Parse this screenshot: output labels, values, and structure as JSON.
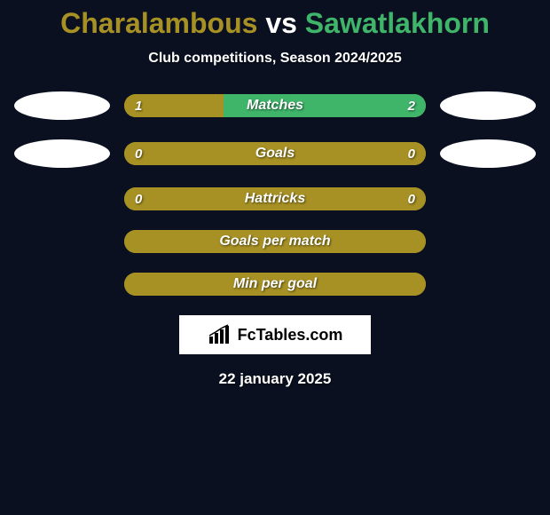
{
  "title": {
    "player1": "Charalambous",
    "vs": " vs ",
    "player2": "Sawatlakhorn",
    "player1_color": "#a79124",
    "player2_color": "#3fb56a"
  },
  "subtitle": "Club competitions, Season 2024/2025",
  "colors": {
    "background": "#0a1020",
    "bar_olive": "#a79124",
    "bar_green": "#3fb56a",
    "text_white": "#ffffff"
  },
  "rows": [
    {
      "label": "Matches",
      "left_value": "1",
      "right_value": "2",
      "left_pct": 33,
      "right_pct": 67,
      "left_color": "#a79124",
      "right_color": "#3fb56a",
      "show_ellipses": true
    },
    {
      "label": "Goals",
      "left_value": "0",
      "right_value": "0",
      "left_pct": 50,
      "right_pct": 50,
      "left_color": "#a79124",
      "right_color": "#a79124",
      "show_ellipses": true
    },
    {
      "label": "Hattricks",
      "left_value": "0",
      "right_value": "0",
      "left_pct": 50,
      "right_pct": 50,
      "left_color": "#a79124",
      "right_color": "#a79124",
      "show_ellipses": false
    },
    {
      "label": "Goals per match",
      "left_value": "",
      "right_value": "",
      "left_pct": 100,
      "right_pct": 0,
      "left_color": "#a79124",
      "right_color": "#a79124",
      "show_ellipses": false
    },
    {
      "label": "Min per goal",
      "left_value": "",
      "right_value": "",
      "left_pct": 100,
      "right_pct": 0,
      "left_color": "#a79124",
      "right_color": "#a79124",
      "show_ellipses": false
    }
  ],
  "logo": {
    "text": "FcTables.com"
  },
  "date": "22 january 2025"
}
